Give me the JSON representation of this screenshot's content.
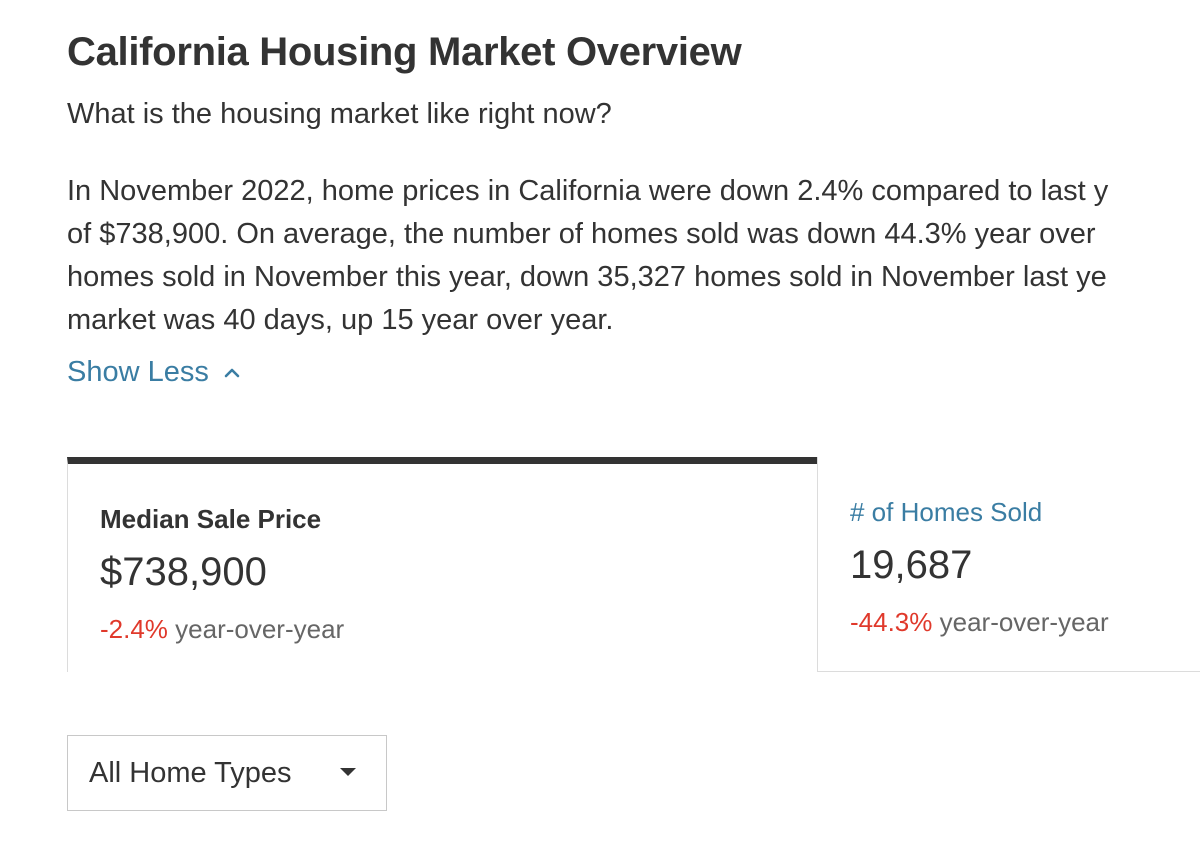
{
  "header": {
    "title": "California Housing Market Overview",
    "subtitle": "What is the housing market like right now?"
  },
  "summary": {
    "lines": [
      "In November 2022, home prices in California were down 2.4% compared to last y",
      "of $738,900. On average, the number of homes sold was down 44.3% year over",
      "homes sold in November this year, down 35,327 homes sold in November last ye",
      "market was 40 days, up 15 year over year."
    ],
    "toggle_label": "Show Less",
    "toggle_icon": "chevron-up-icon"
  },
  "metrics": [
    {
      "label": "Median Sale Price",
      "value": "$738,900",
      "change": "-2.4%",
      "change_suffix": " year-over-year",
      "active": true
    },
    {
      "label": "# of Homes Sold",
      "value": "19,687",
      "change": "-44.3%",
      "change_suffix": " year-over-year",
      "active": false
    }
  ],
  "filter": {
    "selected": "All Home Types",
    "icon": "caret-down-icon"
  },
  "colors": {
    "text": "#333333",
    "link": "#3a7da3",
    "negative": "#e0392b",
    "muted": "#666666",
    "active_tab_border": "#333333"
  }
}
